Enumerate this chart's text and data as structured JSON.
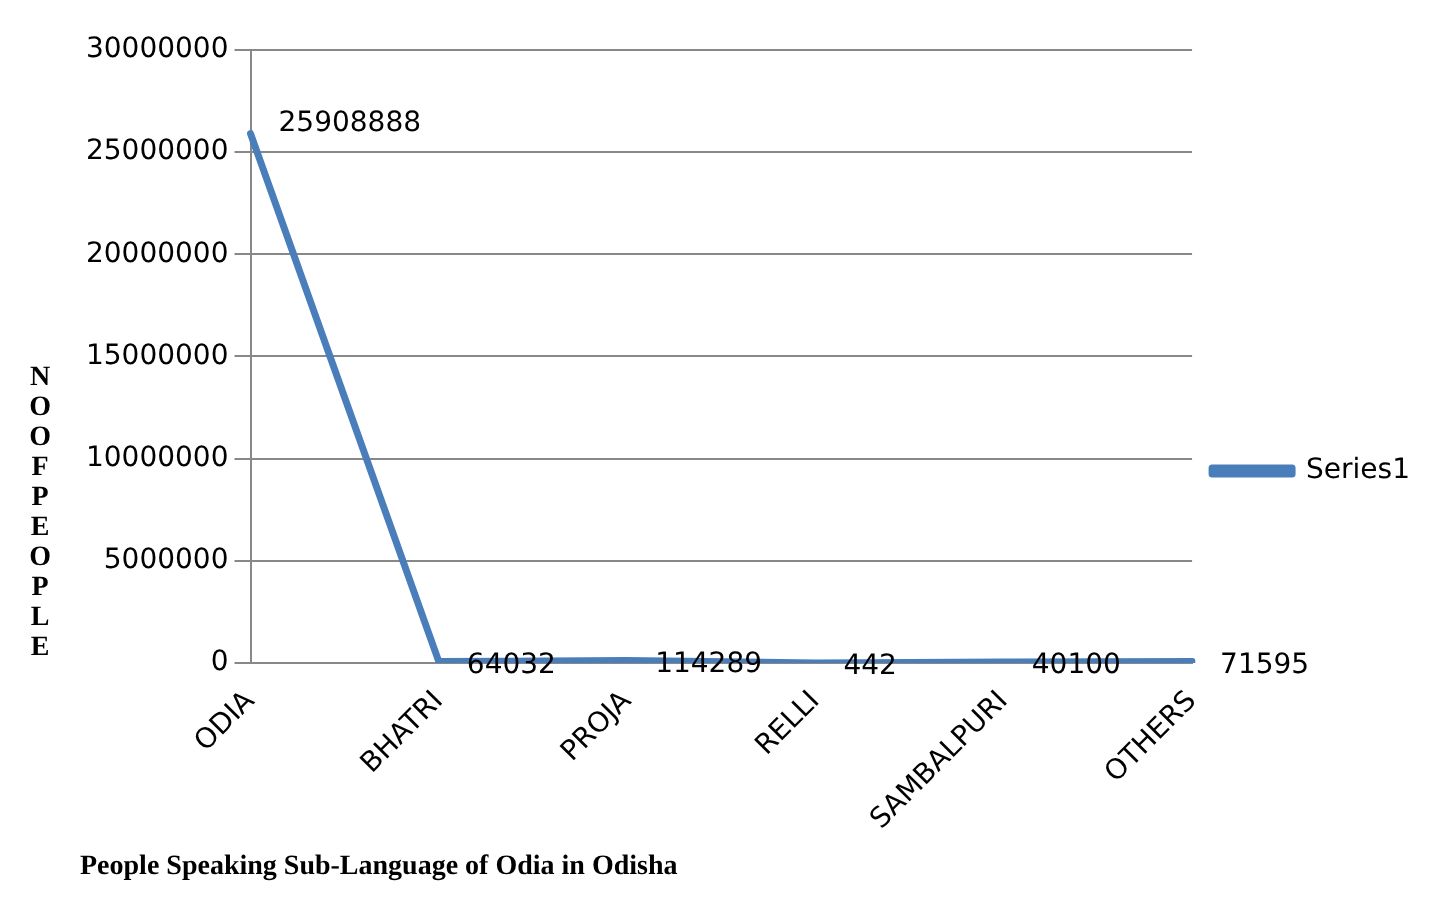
{
  "chart_data": {
    "type": "line",
    "title": "People Speaking Sub-Language of Odia in Odisha",
    "ylabel": "NO OF PEOPLE",
    "categories": [
      "ODIA",
      "BHATRI",
      "PROJA",
      "RELLI",
      "SAMBALPURI",
      "OTHERS"
    ],
    "series": [
      {
        "name": "Series1",
        "color": "#4a7ebb",
        "values": [
          25908888,
          64032,
          114289,
          442,
          40100,
          71595
        ]
      }
    ],
    "ylim": [
      0,
      30000000
    ],
    "yticks": [
      0,
      5000000,
      10000000,
      15000000,
      20000000,
      25000000,
      30000000
    ],
    "grid": "y",
    "legend": "right",
    "data_labels": true,
    "marker": "none",
    "line_style": "solid"
  }
}
